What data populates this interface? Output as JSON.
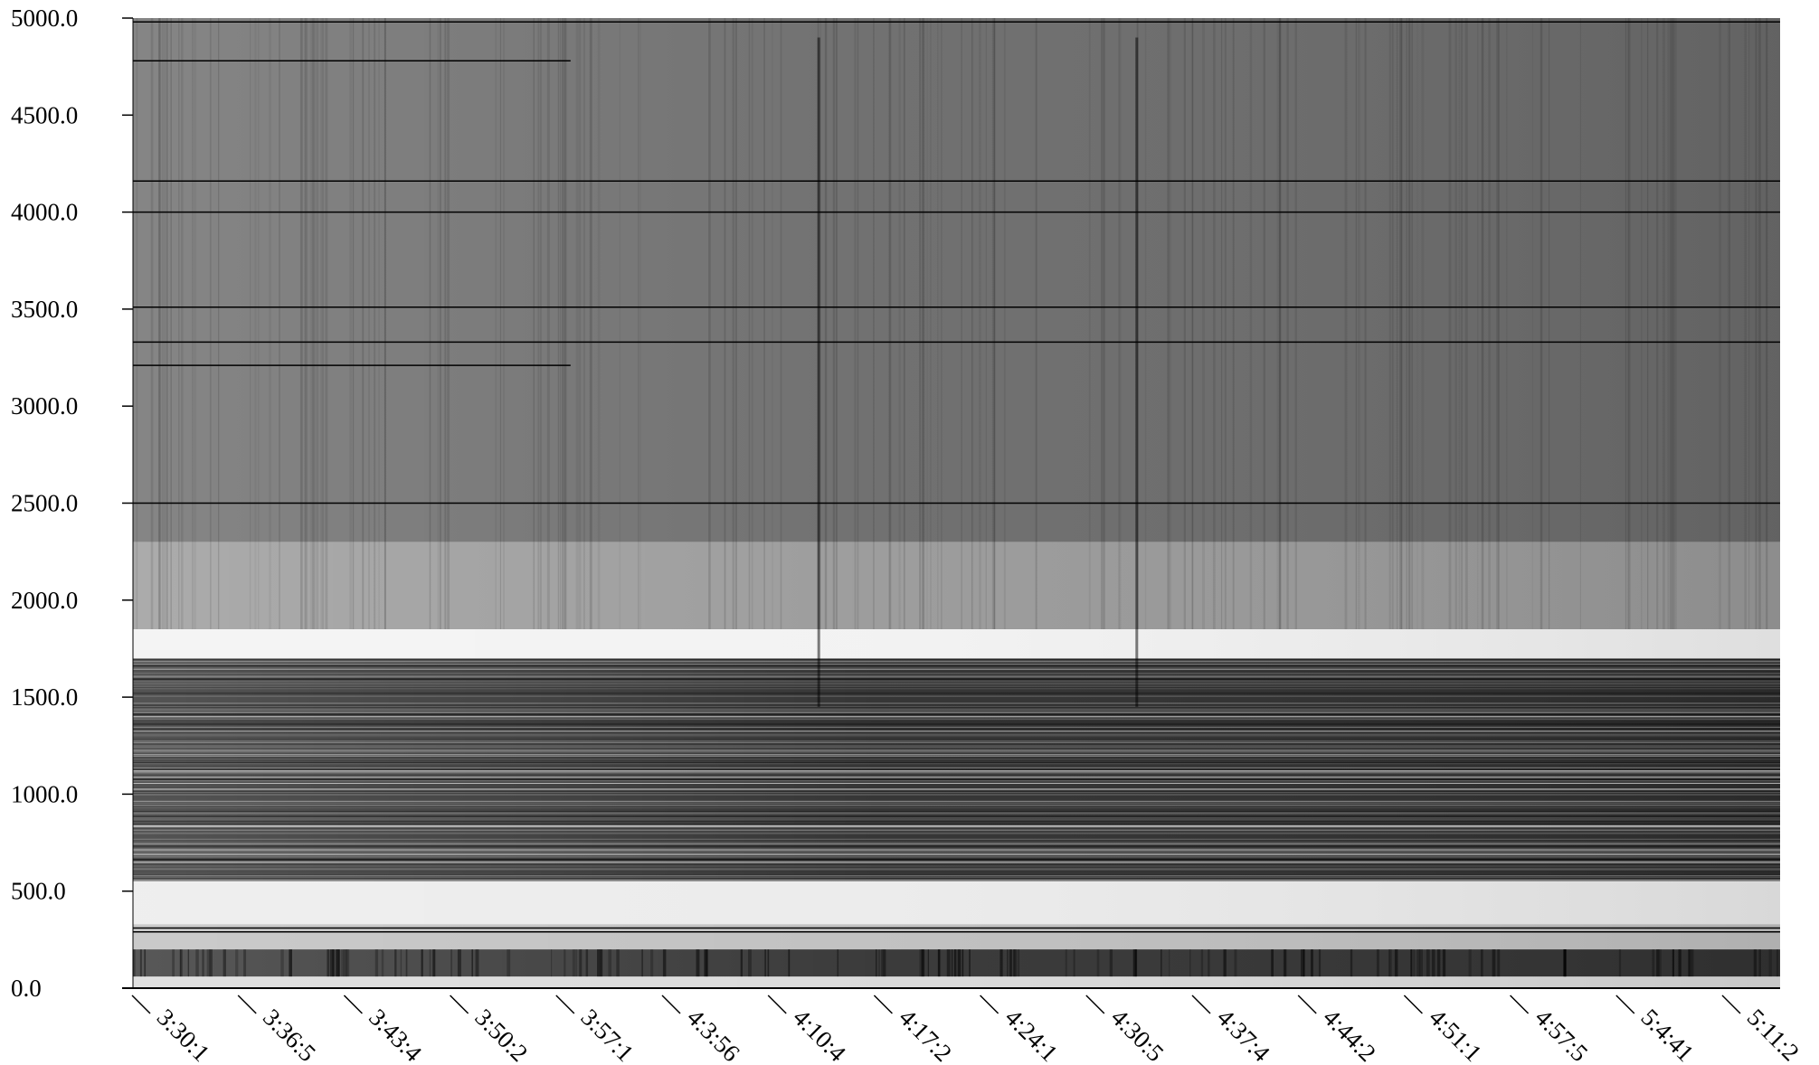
{
  "chart_data": {
    "type": "heatmap",
    "title": "",
    "xlabel": "",
    "ylabel": "",
    "colormap": "grayscale (white = low, black = high)",
    "colors": {
      "background": "#ffffff",
      "axis": "#000000",
      "high": "#000000",
      "low": "#ffffff"
    },
    "y_ticks": [
      "0.0",
      "500.0",
      "1000.0",
      "1500.0",
      "2000.0",
      "2500.0",
      "3000.0",
      "3500.0",
      "4000.0",
      "4500.0",
      "5000.0"
    ],
    "ylim": [
      0,
      5000
    ],
    "x_ticks": [
      "3:30:1",
      "3:36:5",
      "3:43:4",
      "3:50:2",
      "3:57:1",
      "4:3:56",
      "4:10:4",
      "4:17:2",
      "4:24:1",
      "4:30:5",
      "4:37:4",
      "4:44:2",
      "4:51:1",
      "4:57:5",
      "5:4:41",
      "5:11:2"
    ],
    "bands": [
      {
        "from": 0,
        "to": 60,
        "intensity": 0.15
      },
      {
        "from": 60,
        "to": 200,
        "intensity": 0.8
      },
      {
        "from": 200,
        "to": 330,
        "intensity": 0.25
      },
      {
        "from": 330,
        "to": 550,
        "intensity": 0.08
      },
      {
        "from": 550,
        "to": 1700,
        "intensity": 0.82
      },
      {
        "from": 1700,
        "to": 1850,
        "intensity": 0.05
      },
      {
        "from": 1850,
        "to": 2300,
        "intensity": 0.4
      },
      {
        "from": 2300,
        "to": 5000,
        "intensity": 0.58
      }
    ],
    "horizontal_lines": [
      {
        "y": 3210,
        "x_end": "3:57:1"
      },
      {
        "y": 3330,
        "x_end": "5:11:2"
      },
      {
        "y": 3510,
        "x_end": "5:11:2"
      },
      {
        "y": 4160,
        "x_end": "5:11:2"
      },
      {
        "y": 4000,
        "x_end": "5:11:2"
      },
      {
        "y": 4780,
        "x_end": "3:57:1"
      },
      {
        "y": 4980,
        "x_end": "5:11:2"
      },
      {
        "y": 2500,
        "x_end": "5:11:2"
      },
      {
        "y": 310,
        "x_end": "5:11:2"
      },
      {
        "y": 290,
        "x_end": "5:11:2"
      }
    ],
    "vertical_streaks": [
      "4:10:4",
      "4:30:5"
    ],
    "grid": false,
    "legend": "none"
  }
}
